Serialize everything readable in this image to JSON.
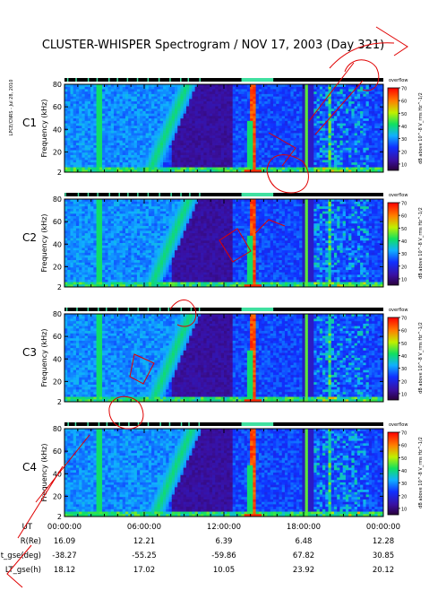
{
  "title": "CLUSTER-WHISPER Spectrogram / NOV 17, 2003 (Day 321)",
  "side_label": "LPCE/CNRS - Jul 28, 2010",
  "colors": {
    "spacecraft_label": "#000000",
    "highlight_spacecraft_label": "#00b000",
    "status_bar_on": "#000000",
    "status_bar_highlight": "#40e0a0",
    "annotation_ink": "#e00000"
  },
  "chart_data": [
    {
      "type": "heatmap",
      "panel": "C1",
      "ylabel": "Frequency (kHz)",
      "yticks": [
        2,
        20,
        40,
        60,
        80
      ],
      "ylim": [
        2,
        80
      ],
      "xlim": [
        "00:00:00",
        "24:00:00"
      ],
      "colorbar": {
        "label": "dB above 10^-8 V_rms Hz^-1/2",
        "ticks": [
          10,
          20,
          30,
          40,
          50,
          60,
          70
        ],
        "range": [
          5,
          70
        ],
        "top_label": "overflow"
      },
      "highlight_label": false
    },
    {
      "type": "heatmap",
      "panel": "C2",
      "ylabel": "Frequency (kHz)",
      "yticks": [
        2,
        20,
        40,
        60,
        80
      ],
      "ylim": [
        2,
        80
      ],
      "xlim": [
        "00:00:00",
        "24:00:00"
      ],
      "colorbar": {
        "label": "dB above 10^-8 V_rms Hz^-1/2",
        "ticks": [
          10,
          20,
          30,
          40,
          50,
          60,
          70
        ],
        "range": [
          5,
          70
        ],
        "top_label": "overflow"
      },
      "highlight_label": false
    },
    {
      "type": "heatmap",
      "panel": "C3",
      "ylabel": "Frequency (kHz)",
      "yticks": [
        2,
        20,
        40,
        60,
        80
      ],
      "ylim": [
        2,
        80
      ],
      "xlim": [
        "00:00:00",
        "24:00:00"
      ],
      "colorbar": {
        "label": "dB above 10^-8 V_rms Hz^-1/2",
        "ticks": [
          10,
          20,
          30,
          40,
          50,
          60,
          70
        ],
        "range": [
          5,
          70
        ],
        "top_label": "overflow"
      },
      "highlight_label": true
    },
    {
      "type": "heatmap",
      "panel": "C4",
      "ylabel": "Frequency (kHz)",
      "yticks": [
        2,
        20,
        40,
        60,
        80
      ],
      "ylim": [
        2,
        80
      ],
      "xlim": [
        "00:00:00",
        "24:00:00"
      ],
      "colorbar": {
        "label": "dB above 10^-8 V_rms Hz^-1/2",
        "ticks": [
          10,
          20,
          30,
          40,
          50,
          60,
          70
        ],
        "range": [
          5,
          70
        ],
        "top_label": "overflow"
      },
      "highlight_label": false
    }
  ],
  "ephemeris": {
    "rows": [
      {
        "label": "UT",
        "values": [
          "00:00:00",
          "06:00:00",
          "12:00:00",
          "18:00:00",
          "00:00:00"
        ]
      },
      {
        "label": "R(Re)",
        "values": [
          "16.09",
          "12.21",
          "6.39",
          "6.48",
          "12.28"
        ]
      },
      {
        "label": "Lat_gse(deg)",
        "values": [
          "-38.27",
          "-55.25",
          "-59.86",
          "67.82",
          "30.85"
        ]
      },
      {
        "label": "LT_gse(h)",
        "values": [
          "18.12",
          "17.02",
          "10.05",
          "23.92",
          "20.12"
        ]
      }
    ]
  }
}
